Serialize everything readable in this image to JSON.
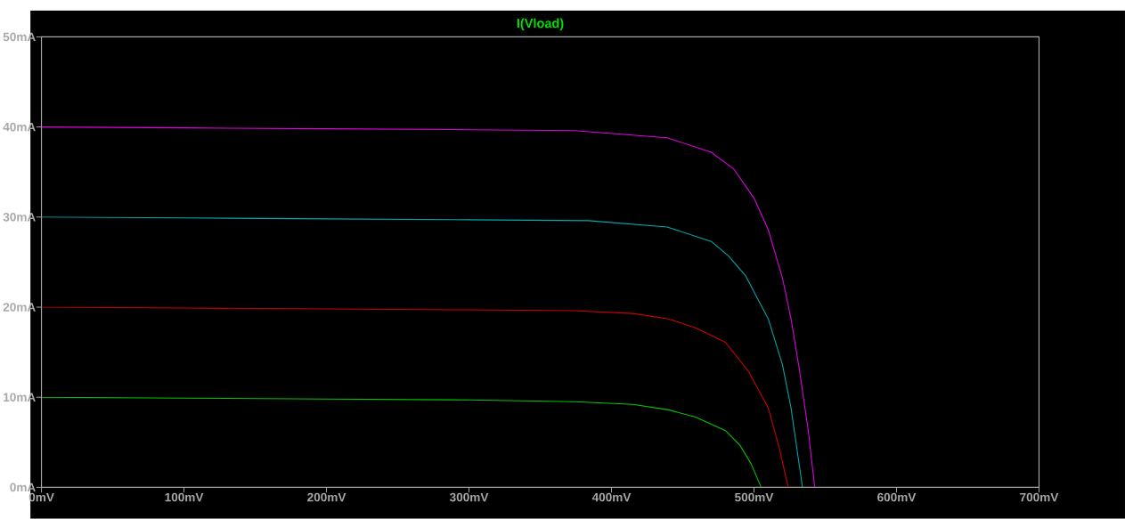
{
  "chart_data": {
    "type": "line",
    "title": "I(Vload)",
    "xlim": [
      0,
      700
    ],
    "ylim": [
      0,
      50
    ],
    "xticks": [
      {
        "value": 0,
        "label": "0mV"
      },
      {
        "value": 100,
        "label": "100mV"
      },
      {
        "value": 200,
        "label": "200mV"
      },
      {
        "value": 300,
        "label": "300mV"
      },
      {
        "value": 400,
        "label": "400mV"
      },
      {
        "value": 500,
        "label": "500mV"
      },
      {
        "value": 600,
        "label": "600mV"
      },
      {
        "value": 700,
        "label": "700mV"
      }
    ],
    "yticks": [
      {
        "value": 0,
        "label": "0mA"
      },
      {
        "value": 10,
        "label": "10mA"
      },
      {
        "value": 20,
        "label": "20mA"
      },
      {
        "value": 30,
        "label": "30mA"
      },
      {
        "value": 40,
        "label": "40mA"
      },
      {
        "value": 50,
        "label": "50mA"
      }
    ],
    "grid": false,
    "marker": "none",
    "line_style": "solid",
    "series": [
      {
        "color": "#00c800",
        "x": [
          0,
          100,
          200,
          300,
          374,
          415,
          440,
          459,
          480,
          490,
          498,
          505
        ],
        "values": [
          10,
          9.9,
          9.8,
          9.7,
          9.5,
          9.2,
          8.6,
          7.8,
          6.3,
          4.7,
          2.6,
          0
        ]
      },
      {
        "color": "#d00000",
        "x": [
          0,
          100,
          200,
          300,
          374,
          415,
          440,
          459,
          480,
          496,
          510,
          518,
          524
        ],
        "values": [
          20,
          19.9,
          19.8,
          19.7,
          19.6,
          19.3,
          18.7,
          17.7,
          16.1,
          12.9,
          8.8,
          4.2,
          0
        ]
      },
      {
        "color": "#00a8b0",
        "x": [
          0,
          100,
          200,
          300,
          384,
          439,
          470,
          482,
          494,
          510,
          520,
          526,
          534
        ],
        "values": [
          30,
          29.9,
          29.8,
          29.7,
          29.6,
          28.9,
          27.3,
          25.7,
          23.5,
          18.7,
          13.6,
          8.8,
          0
        ]
      },
      {
        "color": "#e000e0",
        "x": [
          0,
          100,
          200,
          300,
          374,
          439,
          470,
          486,
          500,
          510,
          520,
          526,
          532,
          538,
          542.6
        ],
        "values": [
          40,
          39.9,
          39.8,
          39.7,
          39.6,
          38.8,
          37.2,
          35.3,
          32.1,
          28.6,
          23.2,
          18.7,
          12.9,
          6.4,
          0
        ]
      }
    ]
  }
}
